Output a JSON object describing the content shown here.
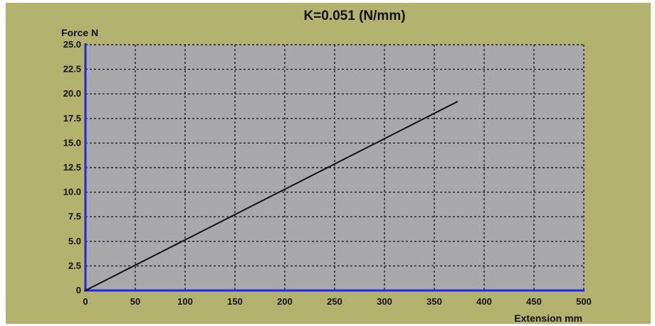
{
  "chart_data": {
    "type": "line",
    "title": "K=0.051  (N/mm)",
    "xlabel": "Extension mm",
    "ylabel": "Force N",
    "xlim": [
      0,
      500
    ],
    "ylim": [
      0,
      25
    ],
    "xticks": [
      "0",
      "50",
      "100",
      "150",
      "200",
      "250",
      "300",
      "350",
      "400",
      "450",
      "500"
    ],
    "yticks": [
      "0",
      "2.5",
      "5.0",
      "7.5",
      "10.0",
      "12.5",
      "15.0",
      "17.5",
      "20.0",
      "22.5",
      "25.0"
    ],
    "grid": true,
    "series": [
      {
        "x": [
          0,
          373
        ],
        "y": [
          0,
          19.2
        ]
      }
    ],
    "colors": {
      "page": "#ffffff",
      "panel": "#b3b26f",
      "plot": "#a9a9ab",
      "axis": "#1d2ce0",
      "grid": "#202020",
      "line": "#111111"
    }
  }
}
